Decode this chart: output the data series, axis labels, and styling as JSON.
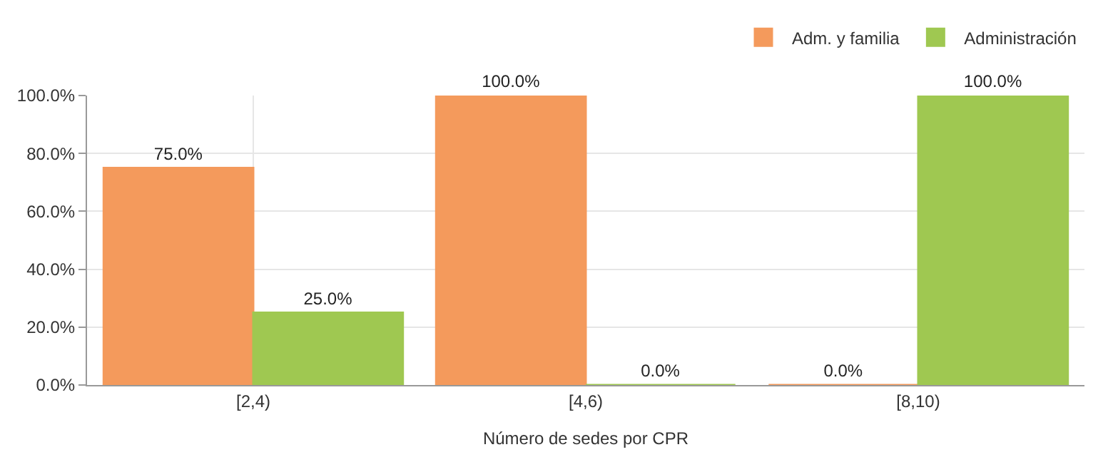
{
  "chart_data": {
    "type": "bar",
    "xlabel": "Número de sedes por CPR",
    "categories": [
      "[2,4)",
      "[4,6)",
      "[8,10)"
    ],
    "series": [
      {
        "name": "Adm. y familia",
        "color": "#f49a5c",
        "values": [
          75,
          100,
          0
        ],
        "value_labels": [
          "75.0%",
          "100.0%",
          "0.0%"
        ]
      },
      {
        "name": "Administración",
        "color": "#9fc851",
        "values": [
          25,
          0,
          100
        ],
        "value_labels": [
          "25.0%",
          "0.0%",
          "100.0%"
        ]
      }
    ],
    "ylim": [
      0,
      100
    ],
    "yticks": [
      {
        "value": 0,
        "label": "0.0%"
      },
      {
        "value": 20,
        "label": "20.0%"
      },
      {
        "value": 40,
        "label": "40.0%"
      },
      {
        "value": 60,
        "label": "60.0%"
      },
      {
        "value": 80,
        "label": "80.0%"
      },
      {
        "value": 100,
        "label": "100.0%"
      }
    ],
    "grid": true,
    "legend": "top right"
  }
}
